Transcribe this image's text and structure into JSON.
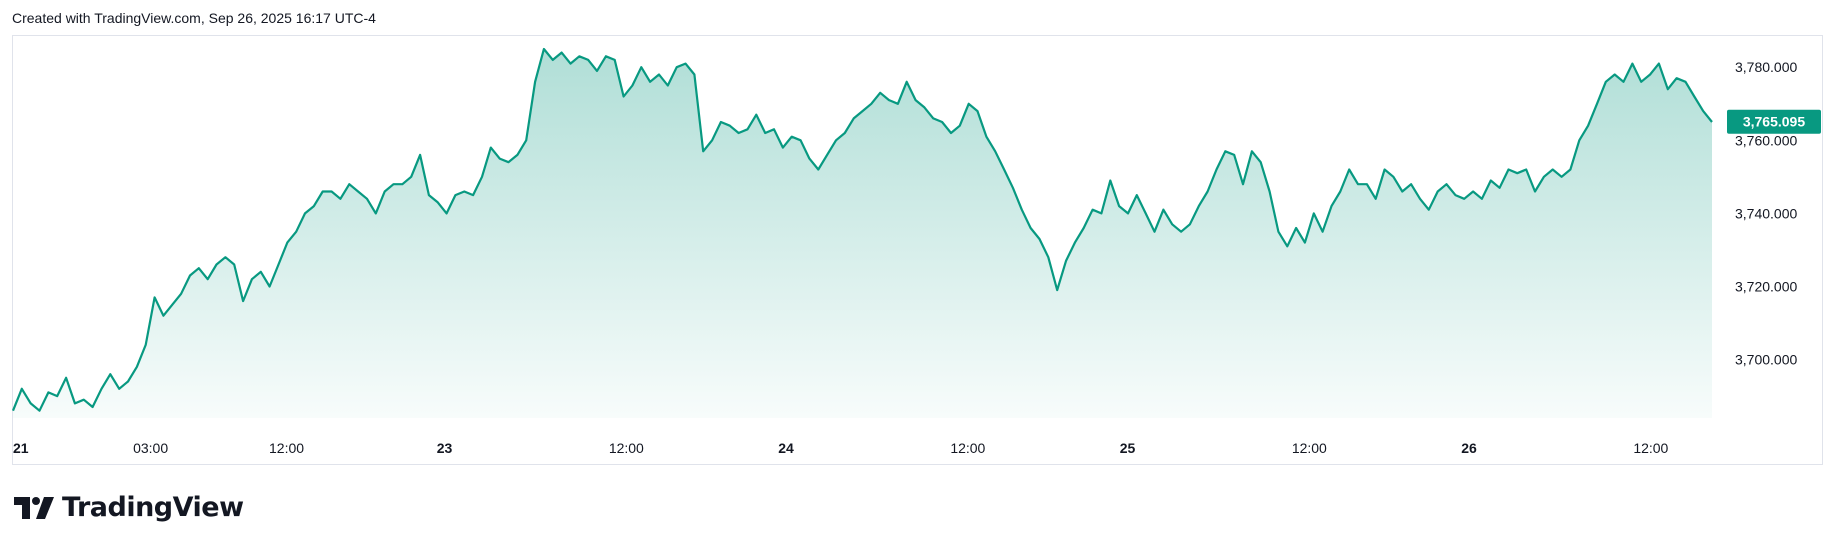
{
  "header": {
    "text": "Created with TradingView.com, Sep 26, 2025 16:17 UTC-4"
  },
  "logo": {
    "text": "TradingView"
  },
  "colors": {
    "line": "#089981",
    "badge": "#089981",
    "fill_top": "#089981"
  },
  "chart_data": {
    "type": "area",
    "last_price_label": "3,765.095",
    "last_price": 3765.095,
    "ylim": [
      3684,
      3788
    ],
    "grid": false,
    "y_ticks": [
      {
        "value": 3780,
        "label": "3,780.000"
      },
      {
        "value": 3760,
        "label": "3,760.000"
      },
      {
        "value": 3740,
        "label": "3,740.000"
      },
      {
        "value": 3720,
        "label": "3,720.000"
      },
      {
        "value": 3700,
        "label": "3,700.000"
      }
    ],
    "x_ticks": [
      {
        "t": 0,
        "label": "21",
        "bold": true
      },
      {
        "t": 0.081,
        "label": "03:00",
        "bold": false
      },
      {
        "t": 0.161,
        "label": "12:00",
        "bold": false
      },
      {
        "t": 0.254,
        "label": "23",
        "bold": true
      },
      {
        "t": 0.361,
        "label": "12:00",
        "bold": false
      },
      {
        "t": 0.455,
        "label": "24",
        "bold": true
      },
      {
        "t": 0.562,
        "label": "12:00",
        "bold": false
      },
      {
        "t": 0.656,
        "label": "25",
        "bold": true
      },
      {
        "t": 0.763,
        "label": "12:00",
        "bold": false
      },
      {
        "t": 0.857,
        "label": "26",
        "bold": true
      },
      {
        "t": 0.964,
        "label": "12:00",
        "bold": false
      }
    ],
    "series": [
      {
        "values": [
          3686,
          3692,
          3688,
          3686,
          3691,
          3690,
          3695,
          3688,
          3689,
          3687,
          3692,
          3696,
          3692,
          3694,
          3698,
          3704,
          3717,
          3712,
          3715,
          3718,
          3723,
          3725,
          3722,
          3726,
          3728,
          3726,
          3716,
          3722,
          3724,
          3720,
          3726,
          3732,
          3735,
          3740,
          3742,
          3746,
          3746,
          3744,
          3748,
          3746,
          3744,
          3740,
          3746,
          3748,
          3748,
          3750,
          3756,
          3745,
          3743,
          3740,
          3745,
          3746,
          3745,
          3750,
          3758,
          3755,
          3754,
          3756,
          3760,
          3776,
          3785,
          3782,
          3784,
          3781,
          3783,
          3782,
          3779,
          3783,
          3782,
          3772,
          3775,
          3780,
          3776,
          3778,
          3775,
          3780,
          3781,
          3778,
          3757,
          3760,
          3765,
          3764,
          3762,
          3763,
          3767,
          3762,
          3763,
          3758,
          3761,
          3760,
          3755,
          3752,
          3756,
          3760,
          3762,
          3766,
          3768,
          3770,
          3773,
          3771,
          3770,
          3776,
          3771,
          3769,
          3766,
          3765,
          3762,
          3764,
          3770,
          3768,
          3761,
          3757,
          3752,
          3747,
          3741,
          3736,
          3733,
          3728,
          3719,
          3727,
          3732,
          3736,
          3741,
          3740,
          3749,
          3742,
          3740,
          3745,
          3740,
          3735,
          3741,
          3737,
          3735,
          3737,
          3742,
          3746,
          3752,
          3757,
          3756,
          3748,
          3757,
          3754,
          3746,
          3735,
          3731,
          3736,
          3732,
          3740,
          3735,
          3742,
          3746,
          3752,
          3748,
          3748,
          3744,
          3752,
          3750,
          3746,
          3748,
          3744,
          3741,
          3746,
          3748,
          3745,
          3744,
          3746,
          3744,
          3749,
          3747,
          3752,
          3751,
          3752,
          3746,
          3750,
          3752,
          3750,
          3752,
          3760,
          3764,
          3770,
          3776,
          3778,
          3776,
          3781,
          3776,
          3778,
          3781,
          3774,
          3777,
          3776,
          3772,
          3768,
          3765
        ]
      }
    ]
  }
}
